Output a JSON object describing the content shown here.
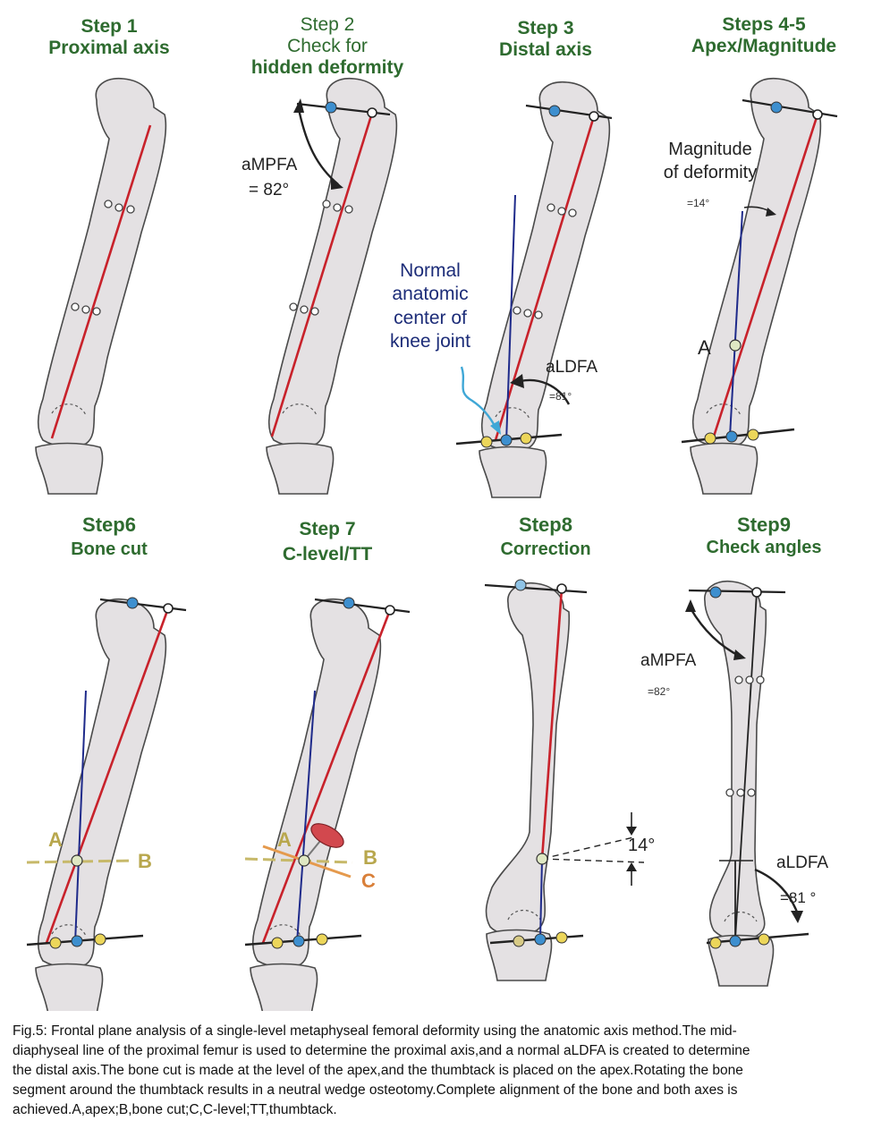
{
  "panels": [
    {
      "id": "step1",
      "title_line1": "Step 1",
      "title_line2": "Proximal axis"
    },
    {
      "id": "step2",
      "title_line1": "Step  2",
      "title_line2": "Check  for",
      "title_line3": "hidden deformity",
      "angle_label": "aMPFA",
      "angle_value": "= 82°"
    },
    {
      "id": "step3",
      "title_line1": "Step  3",
      "title_line2": "Distal axis",
      "note": [
        "Normal",
        "anatomic",
        "center of",
        "knee joint"
      ],
      "angle_label": "aLDFA",
      "angle_value": "=81°"
    },
    {
      "id": "step45",
      "title_line1": "Steps 4-5",
      "title_line2": "Apex/Magnitude",
      "magnitude_label": [
        "Magnitude",
        "of deformity"
      ],
      "magnitude_value": "=14°",
      "apex_label": "A"
    },
    {
      "id": "step6",
      "title_line1": "Step6",
      "title_line2": "Bone cut",
      "apex_label": "A",
      "cut_label": "B"
    },
    {
      "id": "step7",
      "title_line1": "Step 7",
      "title_line2": "C-level/TT",
      "apex_label": "A",
      "cut_label": "B",
      "clevel_label": "C"
    },
    {
      "id": "step8",
      "title_line1": "Step8",
      "title_line2": "Correction",
      "correction_value": "14°"
    },
    {
      "id": "step9",
      "title_line1": "Step9",
      "title_line2": "Check angles",
      "mpfa_label": "aMPFA",
      "mpfa_value": "=82°",
      "ldfa_label": "aLDFA",
      "ldfa_value": "=81 °"
    }
  ],
  "caption": [
    "Fig.5:  Frontal plane analysis of a single-level metaphyseal femoral deformity using the anatomic axis method.The mid-",
    "diaphyseal line of the proximal femur is used to determine the proximal axis,and a normal aLDFA is created to determine",
    "the distal axis.The bone cut is made at the level of the apex,and the thumbtack is placed on the apex.Rotating the bone",
    "segment around the thumbtack results in a neutral wedge osteotomy.Complete alignment of the bone and both axes is",
    "achieved.A,apex;B,bone   cut;C,C-level;TT,thumbtack."
  ],
  "colors": {
    "title_green": "#2e6b2f",
    "axis_red": "#c8222b",
    "axis_blue": "#1e2a8a",
    "bone_fill": "#e4e1e3",
    "hip_dot": "#3d8fcf",
    "knee_dot": "#ecd65a",
    "cut_line": "#c7b96a",
    "clevel_line": "#e59a4d"
  }
}
